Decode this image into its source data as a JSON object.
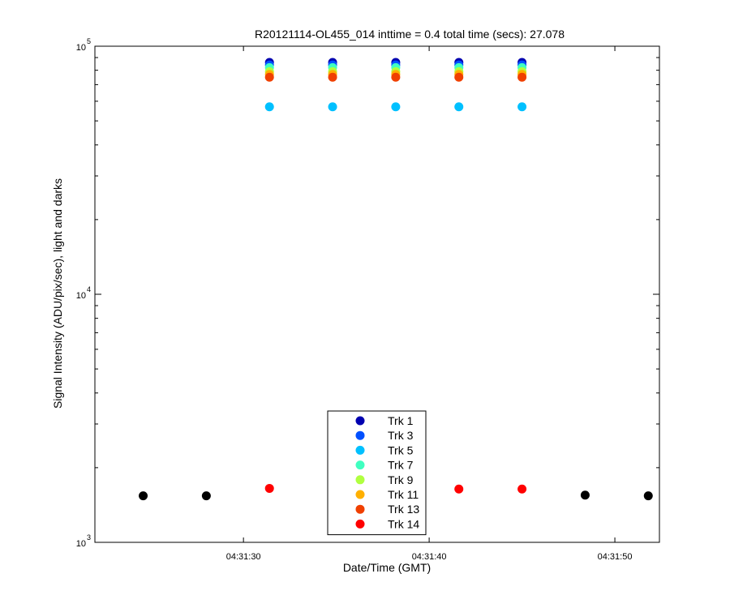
{
  "chart_data": {
    "type": "scatter",
    "title": "R20121114-OL455_014 inttime = 0.4 total time (secs): 27.078",
    "xlabel": "Date/Time (GMT)",
    "ylabel": "Signal Intensity (ADU/pix/sec), light and darks",
    "y_scale": "log",
    "ylim": [
      1000,
      100000
    ],
    "xlim": [
      "04:31:22",
      "04:31:52.4"
    ],
    "x_ticks": [
      "04:31:30",
      "04:31:40",
      "04:31:50"
    ],
    "y_ticks": [
      {
        "base": "10",
        "exp": "3",
        "value": 1000
      },
      {
        "base": "10",
        "exp": "4",
        "value": 10000
      },
      {
        "base": "10",
        "exp": "5",
        "value": 100000
      }
    ],
    "grid": false,
    "legend_position": "lower-center",
    "series": [
      {
        "name": "Trk 1",
        "color": "#0000b0",
        "x": [
          "04:31:31.4",
          "04:31:34.8",
          "04:31:38.2",
          "04:31:41.6",
          "04:31:45.0"
        ],
        "y": [
          86000,
          86000,
          86000,
          86000,
          86000
        ]
      },
      {
        "name": "Trk 3",
        "color": "#0050ff",
        "x": [
          "04:31:31.4",
          "04:31:34.8",
          "04:31:38.2",
          "04:31:41.6",
          "04:31:45.0"
        ],
        "y": [
          84000,
          84000,
          84000,
          84000,
          84000
        ]
      },
      {
        "name": "Trk 5",
        "color": "#00c0ff",
        "x": [
          "04:31:31.4",
          "04:31:34.8",
          "04:31:38.2",
          "04:31:41.6",
          "04:31:45.0"
        ],
        "y": [
          57000,
          57000,
          57000,
          57000,
          57000
        ]
      },
      {
        "name": "Trk 7",
        "color": "#40ffc0",
        "x": [
          "04:31:31.4",
          "04:31:34.8",
          "04:31:38.2",
          "04:31:41.6",
          "04:31:45.0"
        ],
        "y": [
          82000,
          82000,
          82000,
          82000,
          82000
        ]
      },
      {
        "name": "Trk 9",
        "color": "#b0ff40",
        "x": [
          "04:31:31.4",
          "04:31:34.8",
          "04:31:38.2",
          "04:31:41.6",
          "04:31:45.0"
        ],
        "y": [
          79000,
          79000,
          79000,
          79000,
          79000
        ]
      },
      {
        "name": "Trk 11",
        "color": "#ffb000",
        "x": [
          "04:31:31.4",
          "04:31:34.8",
          "04:31:38.2",
          "04:31:41.6",
          "04:31:45.0"
        ],
        "y": [
          77000,
          77000,
          77000,
          77000,
          77000
        ]
      },
      {
        "name": "Trk 13",
        "color": "#f04000",
        "x": [
          "04:31:31.4",
          "04:31:34.8",
          "04:31:38.2",
          "04:31:41.6",
          "04:31:45.0"
        ],
        "y": [
          75000,
          75000,
          75000,
          75000,
          75000
        ]
      },
      {
        "name": "Trk 14",
        "color": "#ff0000",
        "x": [
          "04:31:31.4",
          "04:31:34.8",
          "04:31:38.2",
          "04:31:41.6",
          "04:31:45.0"
        ],
        "y": [
          1650,
          1610,
          1620,
          1640,
          1640
        ]
      },
      {
        "color": "#000000",
        "x": [
          "04:31:24.6",
          "04:31:28.0",
          "04:31:48.4",
          "04:31:51.8"
        ],
        "y": [
          1540,
          1540,
          1550,
          1540
        ]
      }
    ]
  }
}
